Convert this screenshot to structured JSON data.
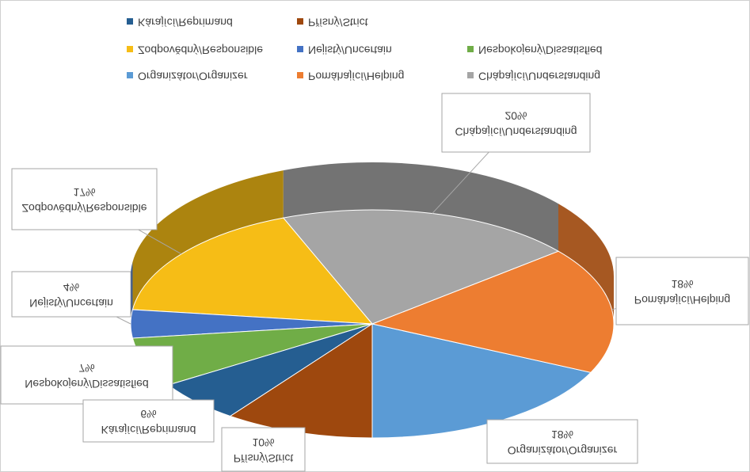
{
  "chart_data": {
    "type": "pie",
    "categories": [
      "Organizátor/Organizer",
      "Pomáhající/Helping",
      "Chápající/Understanding",
      "Zodpovědný/Responsible",
      "Nejistý/Uncertain",
      "Nespokojený/Dissatisfied",
      "Kárající/Reprimand",
      "Přísný/Strict"
    ],
    "values": [
      18,
      18,
      20,
      17,
      4,
      7,
      6,
      10
    ],
    "value_labels": [
      "18%",
      "18%",
      "20%",
      "17%",
      "4%",
      "7%",
      "6%",
      "10%"
    ],
    "colors": [
      "#5b9bd5",
      "#ed7d31",
      "#a5a5a5",
      "#f6bd16",
      "#4472c4",
      "#70ad47",
      "#255e91",
      "#9e480e"
    ],
    "legend": "bottom"
  }
}
